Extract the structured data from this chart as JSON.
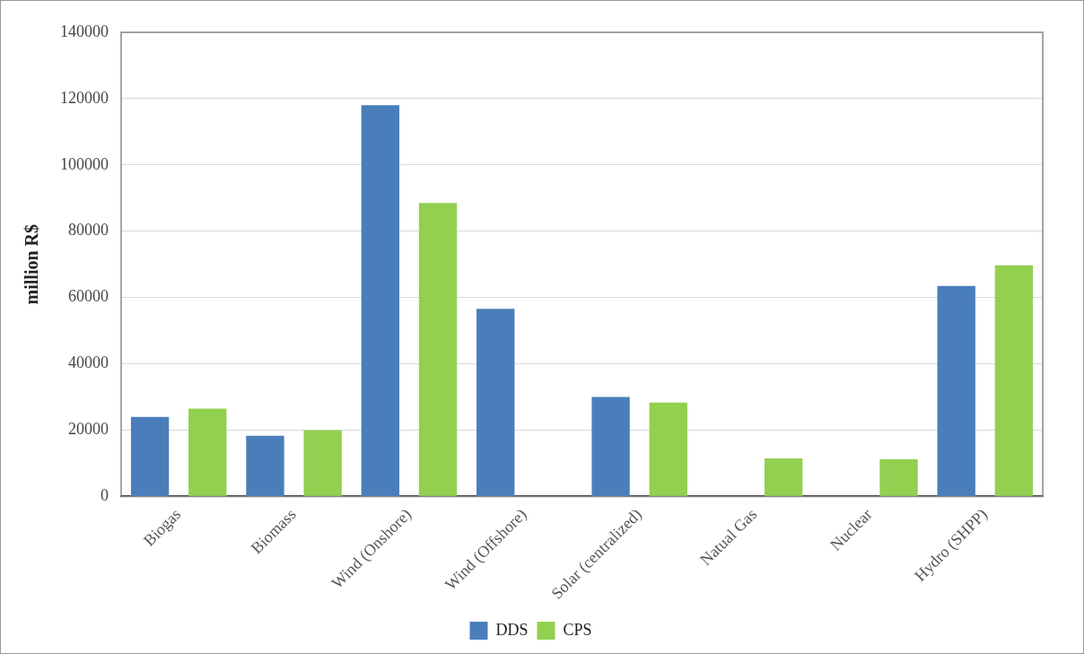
{
  "chart_data": {
    "type": "bar",
    "ylabel": "million R$",
    "categories": [
      "Biogas",
      "Biomass",
      "Wind (Onshore)",
      "Wind (Offshore)",
      "Solar (centralized)",
      "Natual Gas",
      "Nuclear",
      "Hydro (SHPP)"
    ],
    "series": [
      {
        "name": "DDS",
        "color": "#4a7ebb",
        "values": [
          24000,
          18300,
          118000,
          56600,
          30000,
          0,
          0,
          63500
        ]
      },
      {
        "name": "CPS",
        "color": "#92d050",
        "values": [
          26500,
          20000,
          88500,
          0,
          28300,
          11500,
          11200,
          69700
        ]
      }
    ],
    "ylim": [
      0,
      140000
    ],
    "yticks": [
      0,
      20000,
      40000,
      60000,
      80000,
      100000,
      120000,
      140000
    ],
    "grid": "y",
    "legend": "bottom"
  }
}
